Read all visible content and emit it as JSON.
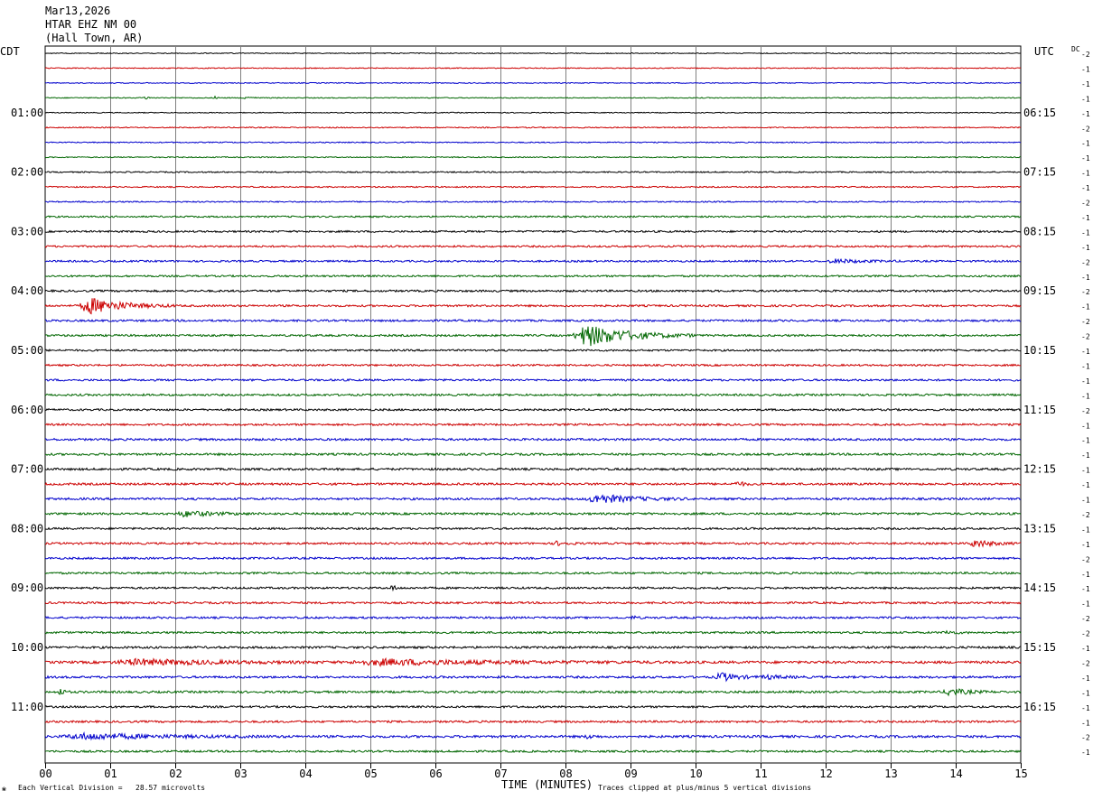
{
  "header": {
    "date": "Mar13,2026",
    "station": "HTAR EHZ NM 00",
    "location": "(Hall Town, AR)"
  },
  "left_axis_label": "CDT",
  "right_axis_label": "UTC",
  "dc_label": "DC",
  "footer": {
    "scale_note": "Each Vertical Division =   28.57 microvolts",
    "x_title": "TIME (MINUTES)",
    "clip_note": "Traces clipped at plus/minus 5 vertical divisions",
    "corner_mark": "❀"
  },
  "colors": {
    "grid": "#808080",
    "frame": "#000000",
    "trace_cycle": [
      "#000000",
      "#cc0000",
      "#0000cc",
      "#006600"
    ]
  },
  "chart_data": {
    "type": "line",
    "title": "HTAR EHZ NM 00",
    "xlabel": "TIME (MINUTES)",
    "x_ticks": [
      "00",
      "01",
      "02",
      "03",
      "04",
      "05",
      "06",
      "07",
      "08",
      "09",
      "10",
      "11",
      "12",
      "13",
      "14",
      "15"
    ],
    "xlim": [
      0,
      15
    ],
    "grid": true,
    "row_count": 48,
    "row_minutes": 15,
    "cdt_labels": [
      {
        "row": 4,
        "text": "01:00"
      },
      {
        "row": 8,
        "text": "02:00"
      },
      {
        "row": 12,
        "text": "03:00"
      },
      {
        "row": 16,
        "text": "04:00"
      },
      {
        "row": 20,
        "text": "05:00"
      },
      {
        "row": 24,
        "text": "06:00"
      },
      {
        "row": 28,
        "text": "07:00"
      },
      {
        "row": 32,
        "text": "08:00"
      },
      {
        "row": 36,
        "text": "09:00"
      },
      {
        "row": 40,
        "text": "10:00"
      },
      {
        "row": 44,
        "text": "11:00"
      }
    ],
    "utc_labels": [
      {
        "row": 4,
        "text": "06:15"
      },
      {
        "row": 8,
        "text": "07:15"
      },
      {
        "row": 12,
        "text": "08:15"
      },
      {
        "row": 16,
        "text": "09:15"
      },
      {
        "row": 20,
        "text": "10:15"
      },
      {
        "row": 24,
        "text": "11:15"
      },
      {
        "row": 28,
        "text": "12:15"
      },
      {
        "row": 32,
        "text": "13:15"
      },
      {
        "row": 36,
        "text": "14:15"
      },
      {
        "row": 40,
        "text": "15:15"
      },
      {
        "row": 44,
        "text": "16:15"
      }
    ],
    "dc_offsets": [
      -2,
      -1,
      -1,
      -1,
      -1,
      -2,
      -1,
      -1,
      -1,
      -1,
      -2,
      -1,
      -1,
      -1,
      -2,
      -1,
      -2,
      -1,
      -2,
      -2,
      -1,
      -1,
      -1,
      -1,
      -2,
      -1,
      -1,
      -1,
      -1,
      -1,
      -1,
      -2,
      -1,
      -1,
      -2,
      -1,
      -1,
      -1,
      -2,
      -2,
      -1,
      -2,
      -1,
      -1,
      -1,
      -1,
      -2,
      -1
    ],
    "noise_levels": [
      0.5,
      0.5,
      0.5,
      0.5,
      0.5,
      0.6,
      0.6,
      0.6,
      0.7,
      0.7,
      0.7,
      0.9,
      1.0,
      1.0,
      1.0,
      1.0,
      1.1,
      1.1,
      1.1,
      1.1,
      1.0,
      1.0,
      1.1,
      1.1,
      1.1,
      1.1,
      1.2,
      1.2,
      1.2,
      1.2,
      1.2,
      1.2,
      1.1,
      1.1,
      1.1,
      1.1,
      1.1,
      1.1,
      1.1,
      1.1,
      1.2,
      1.4,
      1.2,
      1.2,
      1.1,
      1.1,
      1.3,
      1.1
    ],
    "events": [
      {
        "row": 3,
        "start_min": 1.5,
        "end_min": 1.65,
        "amplitude": 3
      },
      {
        "row": 3,
        "start_min": 2.6,
        "end_min": 2.7,
        "amplitude": 2
      },
      {
        "row": 3,
        "start_min": 3.05,
        "end_min": 3.25,
        "amplitude": 3
      },
      {
        "row": 14,
        "start_min": 12.0,
        "end_min": 13.3,
        "amplitude": 2
      },
      {
        "row": 17,
        "start_min": 0.5,
        "end_min": 2.0,
        "amplitude": 9
      },
      {
        "row": 19,
        "start_min": 8.1,
        "end_min": 10.0,
        "amplitude": 12
      },
      {
        "row": 29,
        "start_min": 10.6,
        "end_min": 10.9,
        "amplitude": 3
      },
      {
        "row": 30,
        "start_min": 8.3,
        "end_min": 9.9,
        "amplitude": 5
      },
      {
        "row": 31,
        "start_min": 2.0,
        "end_min": 3.3,
        "amplitude": 3
      },
      {
        "row": 33,
        "start_min": 7.8,
        "end_min": 8.3,
        "amplitude": 2
      },
      {
        "row": 33,
        "start_min": 14.2,
        "end_min": 15.0,
        "amplitude": 4
      },
      {
        "row": 36,
        "start_min": 5.3,
        "end_min": 5.5,
        "amplitude": 3
      },
      {
        "row": 38,
        "start_min": 9.0,
        "end_min": 9.2,
        "amplitude": 2
      },
      {
        "row": 39,
        "start_min": 13.8,
        "end_min": 14.2,
        "amplitude": 2
      },
      {
        "row": 41,
        "start_min": 1.0,
        "end_min": 4.5,
        "amplitude": 3
      },
      {
        "row": 41,
        "start_min": 4.6,
        "end_min": 9.5,
        "amplitude": 3
      },
      {
        "row": 42,
        "start_min": 10.3,
        "end_min": 11.0,
        "amplitude": 5
      },
      {
        "row": 42,
        "start_min": 11.0,
        "end_min": 11.8,
        "amplitude": 2
      },
      {
        "row": 43,
        "start_min": 0.2,
        "end_min": 0.4,
        "amplitude": 4
      },
      {
        "row": 43,
        "start_min": 13.8,
        "end_min": 14.6,
        "amplitude": 4
      },
      {
        "row": 46,
        "start_min": 0.2,
        "end_min": 3.8,
        "amplitude": 3
      },
      {
        "row": 46,
        "start_min": 8.3,
        "end_min": 8.6,
        "amplitude": 2
      }
    ]
  }
}
